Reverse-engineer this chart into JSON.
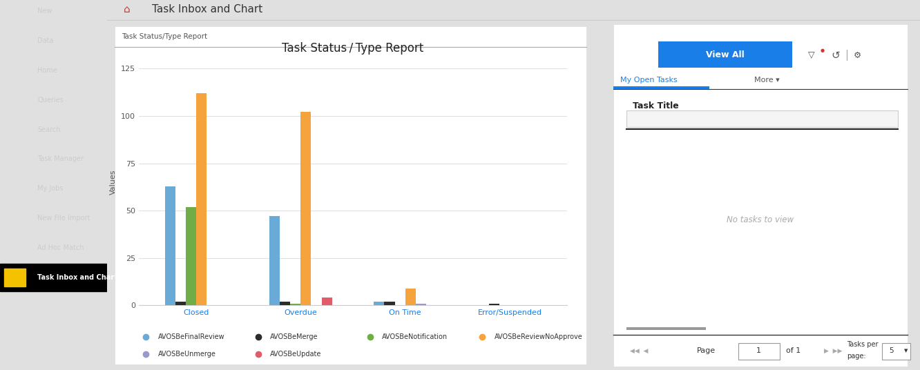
{
  "page_title": "Task Inbox and Chart",
  "chart_panel_title": "Task Status/Type Report",
  "chart_title": "Task Status / Type Report",
  "ylabel": "Values",
  "groups": [
    "Closed",
    "Overdue",
    "On Time",
    "Error/Suspended"
  ],
  "series": [
    {
      "label": "AVOSBeFinalReview",
      "color": "#6aaad7",
      "values": [
        63,
        47,
        2,
        0
      ]
    },
    {
      "label": "AVOSBeMerge",
      "color": "#2c2c2c",
      "values": [
        2,
        2,
        2,
        1
      ]
    },
    {
      "label": "AVOSBeNotification",
      "color": "#70ad47",
      "values": [
        52,
        1,
        0,
        0
      ]
    },
    {
      "label": "AVOSBeReviewNoApprove",
      "color": "#f4a33d",
      "values": [
        112,
        102,
        9,
        0
      ]
    },
    {
      "label": "AVOSBeUnmerge",
      "color": "#9999cc",
      "values": [
        0,
        0,
        1,
        0
      ]
    },
    {
      "label": "AVOSBeUpdate",
      "color": "#e05c6a",
      "values": [
        0,
        4,
        0,
        0
      ]
    }
  ],
  "yticks": [
    0,
    25,
    50,
    75,
    100,
    125
  ],
  "ylim": [
    0,
    130
  ],
  "sidebar_bg": "#3a3b40",
  "sidebar_highlight_bg": "#1a1a1a",
  "sidebar_text": "#cccccc",
  "sidebar_highlight_item": "Task Inbox and Chart",
  "sidebar_highlight_color": "#f5c200",
  "panel_bg": "#ffffff",
  "outer_bg": "#e0e0e0",
  "header_bg": "#ffffff",
  "view_all_btn_color": "#1a7ee8",
  "my_open_tasks_color": "#1a7ee8",
  "task_title_label": "Task Title",
  "no_tasks_text": "No tasks to view",
  "pagination_page": "Page",
  "pagination_of": "of 1",
  "tasks_per_page_label": "Tasks per\npage:",
  "tasks_per_page_val": "5"
}
